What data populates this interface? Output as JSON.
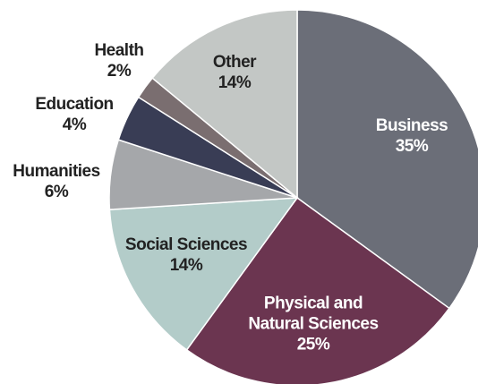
{
  "chart_data": {
    "type": "pie",
    "categories": [
      "Business",
      "Physical and Natural Sciences",
      "Social Sciences",
      "Humanities",
      "Education",
      "Health",
      "Other"
    ],
    "values": [
      35,
      25,
      14,
      6,
      4,
      2,
      14
    ],
    "value_labels": [
      "35%",
      "25%",
      "14%",
      "6%",
      "4%",
      "2%",
      "14%"
    ],
    "colors": [
      "#6b6e78",
      "#6b3550",
      "#b3ccc9",
      "#a5a7aa",
      "#393d55",
      "#7a6e70",
      "#c3c7c5"
    ]
  }
}
